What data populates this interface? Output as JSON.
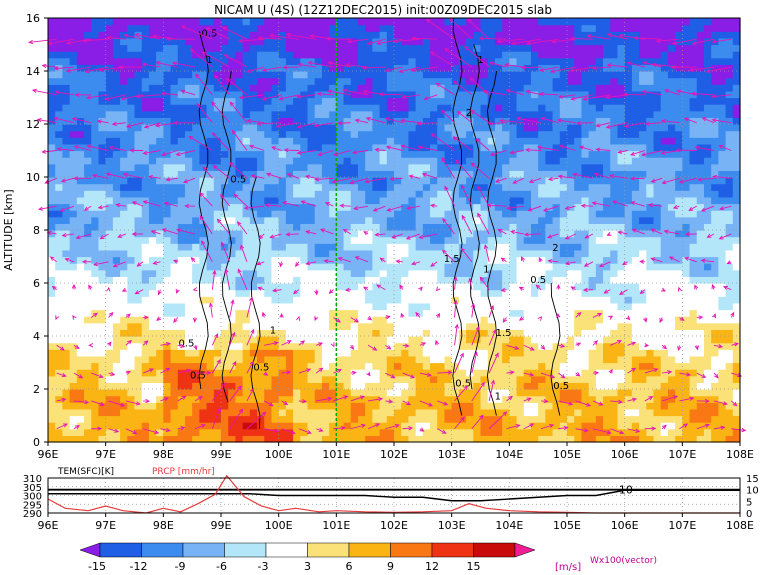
{
  "title": "NICAM  U  (4S)  (12Z12DEC2015)  init:00Z09DEC2015  slab",
  "colors": {
    "levels": [
      "#8a1ee6",
      "#1e5fe6",
      "#3c8cf0",
      "#78b4f5",
      "#b4e6fa",
      "#ffffff",
      "#fae178",
      "#fab414",
      "#fa7814",
      "#f03214",
      "#c80a0a",
      "#f01e96"
    ],
    "contour": "#000000",
    "vector": "#e614b4",
    "gridline": "#999999",
    "center_line": "#00aa00",
    "temp_line": "#000000",
    "prcp_line": "#e63c3c"
  },
  "chart_data": [
    {
      "type": "heatmap",
      "title": "NICAM  U  (4S)  (12Z12DEC2015)  init:00Z09DEC2015  slab",
      "ylabel": "ALTITUDE [km]",
      "xlim": [
        96,
        108
      ],
      "ylim": [
        0,
        16
      ],
      "x_ticks": [
        "96E",
        "97E",
        "98E",
        "99E",
        "100E",
        "101E",
        "102E",
        "103E",
        "104E",
        "105E",
        "106E",
        "107E",
        "108E"
      ],
      "y_ticks": [
        "0",
        "2",
        "4",
        "6",
        "8",
        "10",
        "12",
        "14",
        "16"
      ],
      "grid": true,
      "center_line_x": 101,
      "contour_labels": [
        "0.5",
        "1",
        "0.5",
        "1",
        "0.5",
        "0.5",
        "0.5",
        "1",
        "2",
        "1.5",
        "1",
        "1.5",
        "2",
        "0.5",
        "0.5",
        "1",
        "0.5"
      ],
      "vector_label": "Wx100(vector)",
      "zonal_wind_profile": [
        {
          "altitude": 0.5,
          "u": 7
        },
        {
          "altitude": 2,
          "u": 6
        },
        {
          "altitude": 4,
          "u": 3
        },
        {
          "altitude": 6,
          "u": -3
        },
        {
          "altitude": 8,
          "u": -7
        },
        {
          "altitude": 11,
          "u": -10
        },
        {
          "altitude": 14,
          "u": -13
        },
        {
          "altitude": 15.5,
          "u": -16
        }
      ]
    },
    {
      "type": "line",
      "xlim": [
        96,
        108
      ],
      "x_ticks": [
        "96E",
        "97E",
        "98E",
        "99E",
        "100E",
        "101E",
        "102E",
        "103E",
        "104E",
        "105E",
        "106E",
        "107E",
        "108E"
      ],
      "left_axis": {
        "label": "TEM(SFC)[K]",
        "ticks": [
          "310",
          "305",
          "300",
          "295",
          "290"
        ],
        "range": [
          290,
          310
        ]
      },
      "right_axis": {
        "label": "PRCP [mm/hr]",
        "ticks": [
          "15",
          "10",
          "5",
          "0"
        ],
        "range": [
          0,
          15
        ]
      },
      "annotation": "10",
      "series": [
        {
          "name": "TEM(SFC)[K]",
          "x": [
            96,
            96.5,
            97,
            97.5,
            98,
            98.5,
            99,
            99.5,
            100,
            100.5,
            101,
            101.5,
            102,
            102.5,
            103,
            103.5,
            104,
            104.5,
            105,
            105.5,
            106,
            106.5,
            107,
            107.5,
            108
          ],
          "y": [
            301,
            301,
            301,
            301,
            301,
            301,
            301,
            301,
            300,
            300,
            300,
            300,
            299,
            299,
            297,
            297,
            298,
            299,
            300,
            300,
            303,
            303,
            303,
            303,
            303
          ]
        },
        {
          "name": "PRCP [mm/hr]",
          "x": [
            96,
            96.3,
            96.7,
            97,
            97.3,
            97.7,
            98,
            98.3,
            98.6,
            98.9,
            99.1,
            99.4,
            99.7,
            100,
            100.3,
            100.7,
            101,
            101.5,
            102,
            102.5,
            103,
            103.3,
            103.6,
            104,
            104.5,
            105,
            105.5,
            106,
            107,
            108
          ],
          "y": [
            6,
            2,
            1,
            3,
            1,
            0,
            2,
            0.5,
            4,
            8,
            16,
            7,
            3,
            1,
            2,
            0.5,
            1,
            0.5,
            0.3,
            0.5,
            1,
            4,
            2,
            1,
            0.5,
            0.3,
            0,
            0,
            0,
            0
          ]
        }
      ]
    },
    {
      "type": "colorbar",
      "tick_labels": [
        "-15",
        "-12",
        "-9",
        "-6",
        "-3",
        "3",
        "6",
        "9",
        "12",
        "15"
      ],
      "unit": "[m/s]"
    }
  ]
}
